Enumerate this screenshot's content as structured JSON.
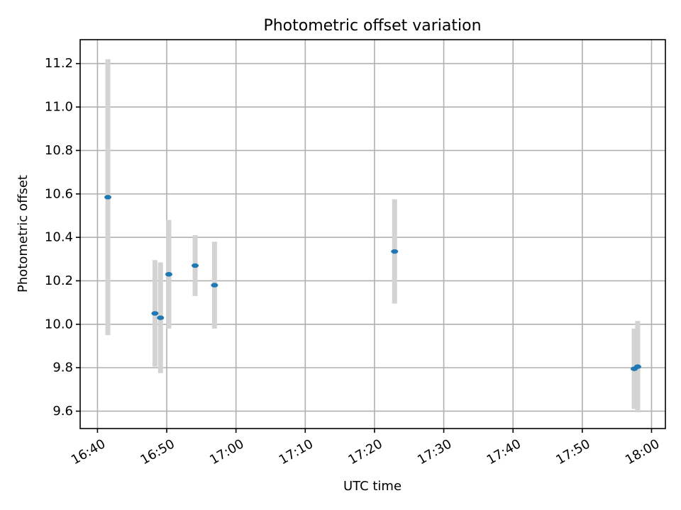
{
  "chart_data": {
    "type": "scatter",
    "title": "Photometric offset variation",
    "xlabel": "UTC time",
    "ylabel": "Photometric offset",
    "grid": true,
    "errorbar_color": "#d3d3d3",
    "marker_color": "#1f77b4",
    "xlim": [
      "16:37.5",
      "18:02"
    ],
    "ylim": [
      9.52,
      11.31
    ],
    "x_ticks": [
      "16:40",
      "16:50",
      "17:00",
      "17:10",
      "17:20",
      "17:30",
      "17:40",
      "17:50",
      "18:00"
    ],
    "y_ticks": [
      9.6,
      9.8,
      10.0,
      10.2,
      10.4,
      10.6,
      10.8,
      11.0,
      11.2
    ],
    "y_tick_labels": [
      "9.6",
      "9.8",
      "10.0",
      "10.2",
      "10.4",
      "10.6",
      "10.8",
      "11.0",
      "11.2"
    ],
    "points": [
      {
        "time": "16:41.5",
        "y": 10.585,
        "yerr": 0.635
      },
      {
        "time": "16:48.3",
        "y": 10.05,
        "yerr": 0.245
      },
      {
        "time": "16:49.1",
        "y": 10.03,
        "yerr": 0.255
      },
      {
        "time": "16:50.3",
        "y": 10.23,
        "yerr": 0.25
      },
      {
        "time": "16:54.1",
        "y": 10.27,
        "yerr": 0.14
      },
      {
        "time": "16:56.9",
        "y": 10.18,
        "yerr": 0.2
      },
      {
        "time": "17:22.9",
        "y": 10.335,
        "yerr": 0.24
      },
      {
        "time": "17:57.5",
        "y": 9.795,
        "yerr": 0.185
      },
      {
        "time": "17:58.0",
        "y": 9.805,
        "yerr": 0.21
      }
    ]
  }
}
